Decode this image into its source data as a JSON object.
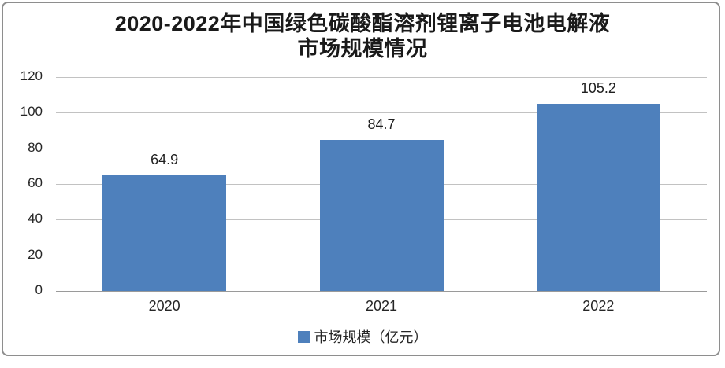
{
  "chart_data": {
    "type": "bar",
    "title_line1": "2020-2022年中国绿色碳酸酯溶剂锂离子电池电解液",
    "title_line2": "市场规模情况",
    "categories": [
      "2020",
      "2021",
      "2022"
    ],
    "values": [
      64.9,
      84.7,
      105.2
    ],
    "value_labels": [
      "64.9",
      "84.7",
      "105.2"
    ],
    "series_name": "市场规模（亿元）",
    "y_ticks": [
      0,
      20,
      40,
      60,
      80,
      100,
      120
    ],
    "y_tick_labels": [
      "0",
      "20",
      "40",
      "60",
      "80",
      "100",
      "120"
    ],
    "ylim": [
      0,
      120
    ],
    "grid": true,
    "legend_position": "bottom",
    "bar_color": "#4E80BC",
    "gridline_color": "#c2c2c2",
    "frame_border_color": "#8e8e8e"
  }
}
